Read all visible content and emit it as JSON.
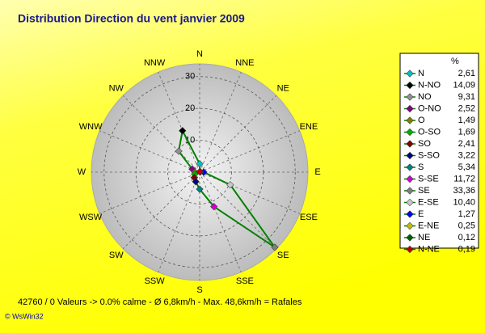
{
  "chart_data": {
    "type": "radar",
    "title": "Distribution Direction du vent   janvier 2009",
    "directions": [
      "N",
      "NNE",
      "NE",
      "ENE",
      "E",
      "ESE",
      "SE",
      "SSE",
      "S",
      "SSW",
      "SW",
      "WSW",
      "W",
      "WNW",
      "NW",
      "NNW"
    ],
    "legend_header": "%",
    "categories": [
      "N",
      "N-NO",
      "NO",
      "O-NO",
      "O",
      "O-SO",
      "SO",
      "S-SO",
      "S",
      "S-SE",
      "SE",
      "E-SE",
      "E",
      "E-NE",
      "NE",
      "N-NE"
    ],
    "values": [
      2.61,
      14.09,
      9.31,
      2.52,
      1.49,
      1.69,
      2.41,
      3.22,
      5.34,
      11.72,
      33.36,
      10.4,
      1.27,
      0.25,
      0.12,
      0.19
    ],
    "value_labels": [
      "2,61",
      "14,09",
      "9,31",
      "2,52",
      "1,49",
      "1,69",
      "2,41",
      "3,22",
      "5,34",
      "11,72",
      "33,36",
      "10,40",
      "1,27",
      "0,25",
      "0,12",
      "0,19"
    ],
    "colors": [
      "#00c0c0",
      "#000000",
      "#909090",
      "#800080",
      "#808000",
      "#00b000",
      "#800000",
      "#000080",
      "#008080",
      "#d000d0",
      "#808080",
      "#c8c8c8",
      "#0000ff",
      "#c0c000",
      "#006000",
      "#c00000"
    ],
    "line_color": "#008000",
    "rlim": [
      0,
      34
    ],
    "rticks": [
      10,
      20,
      30
    ],
    "grid": true,
    "footer": "42760 / 0 Valeurs  -> 0.0% calme   -   Ø 6,8km/h  -  Max. 48,6km/h = Rafales",
    "copyright": "© WsWin32"
  }
}
